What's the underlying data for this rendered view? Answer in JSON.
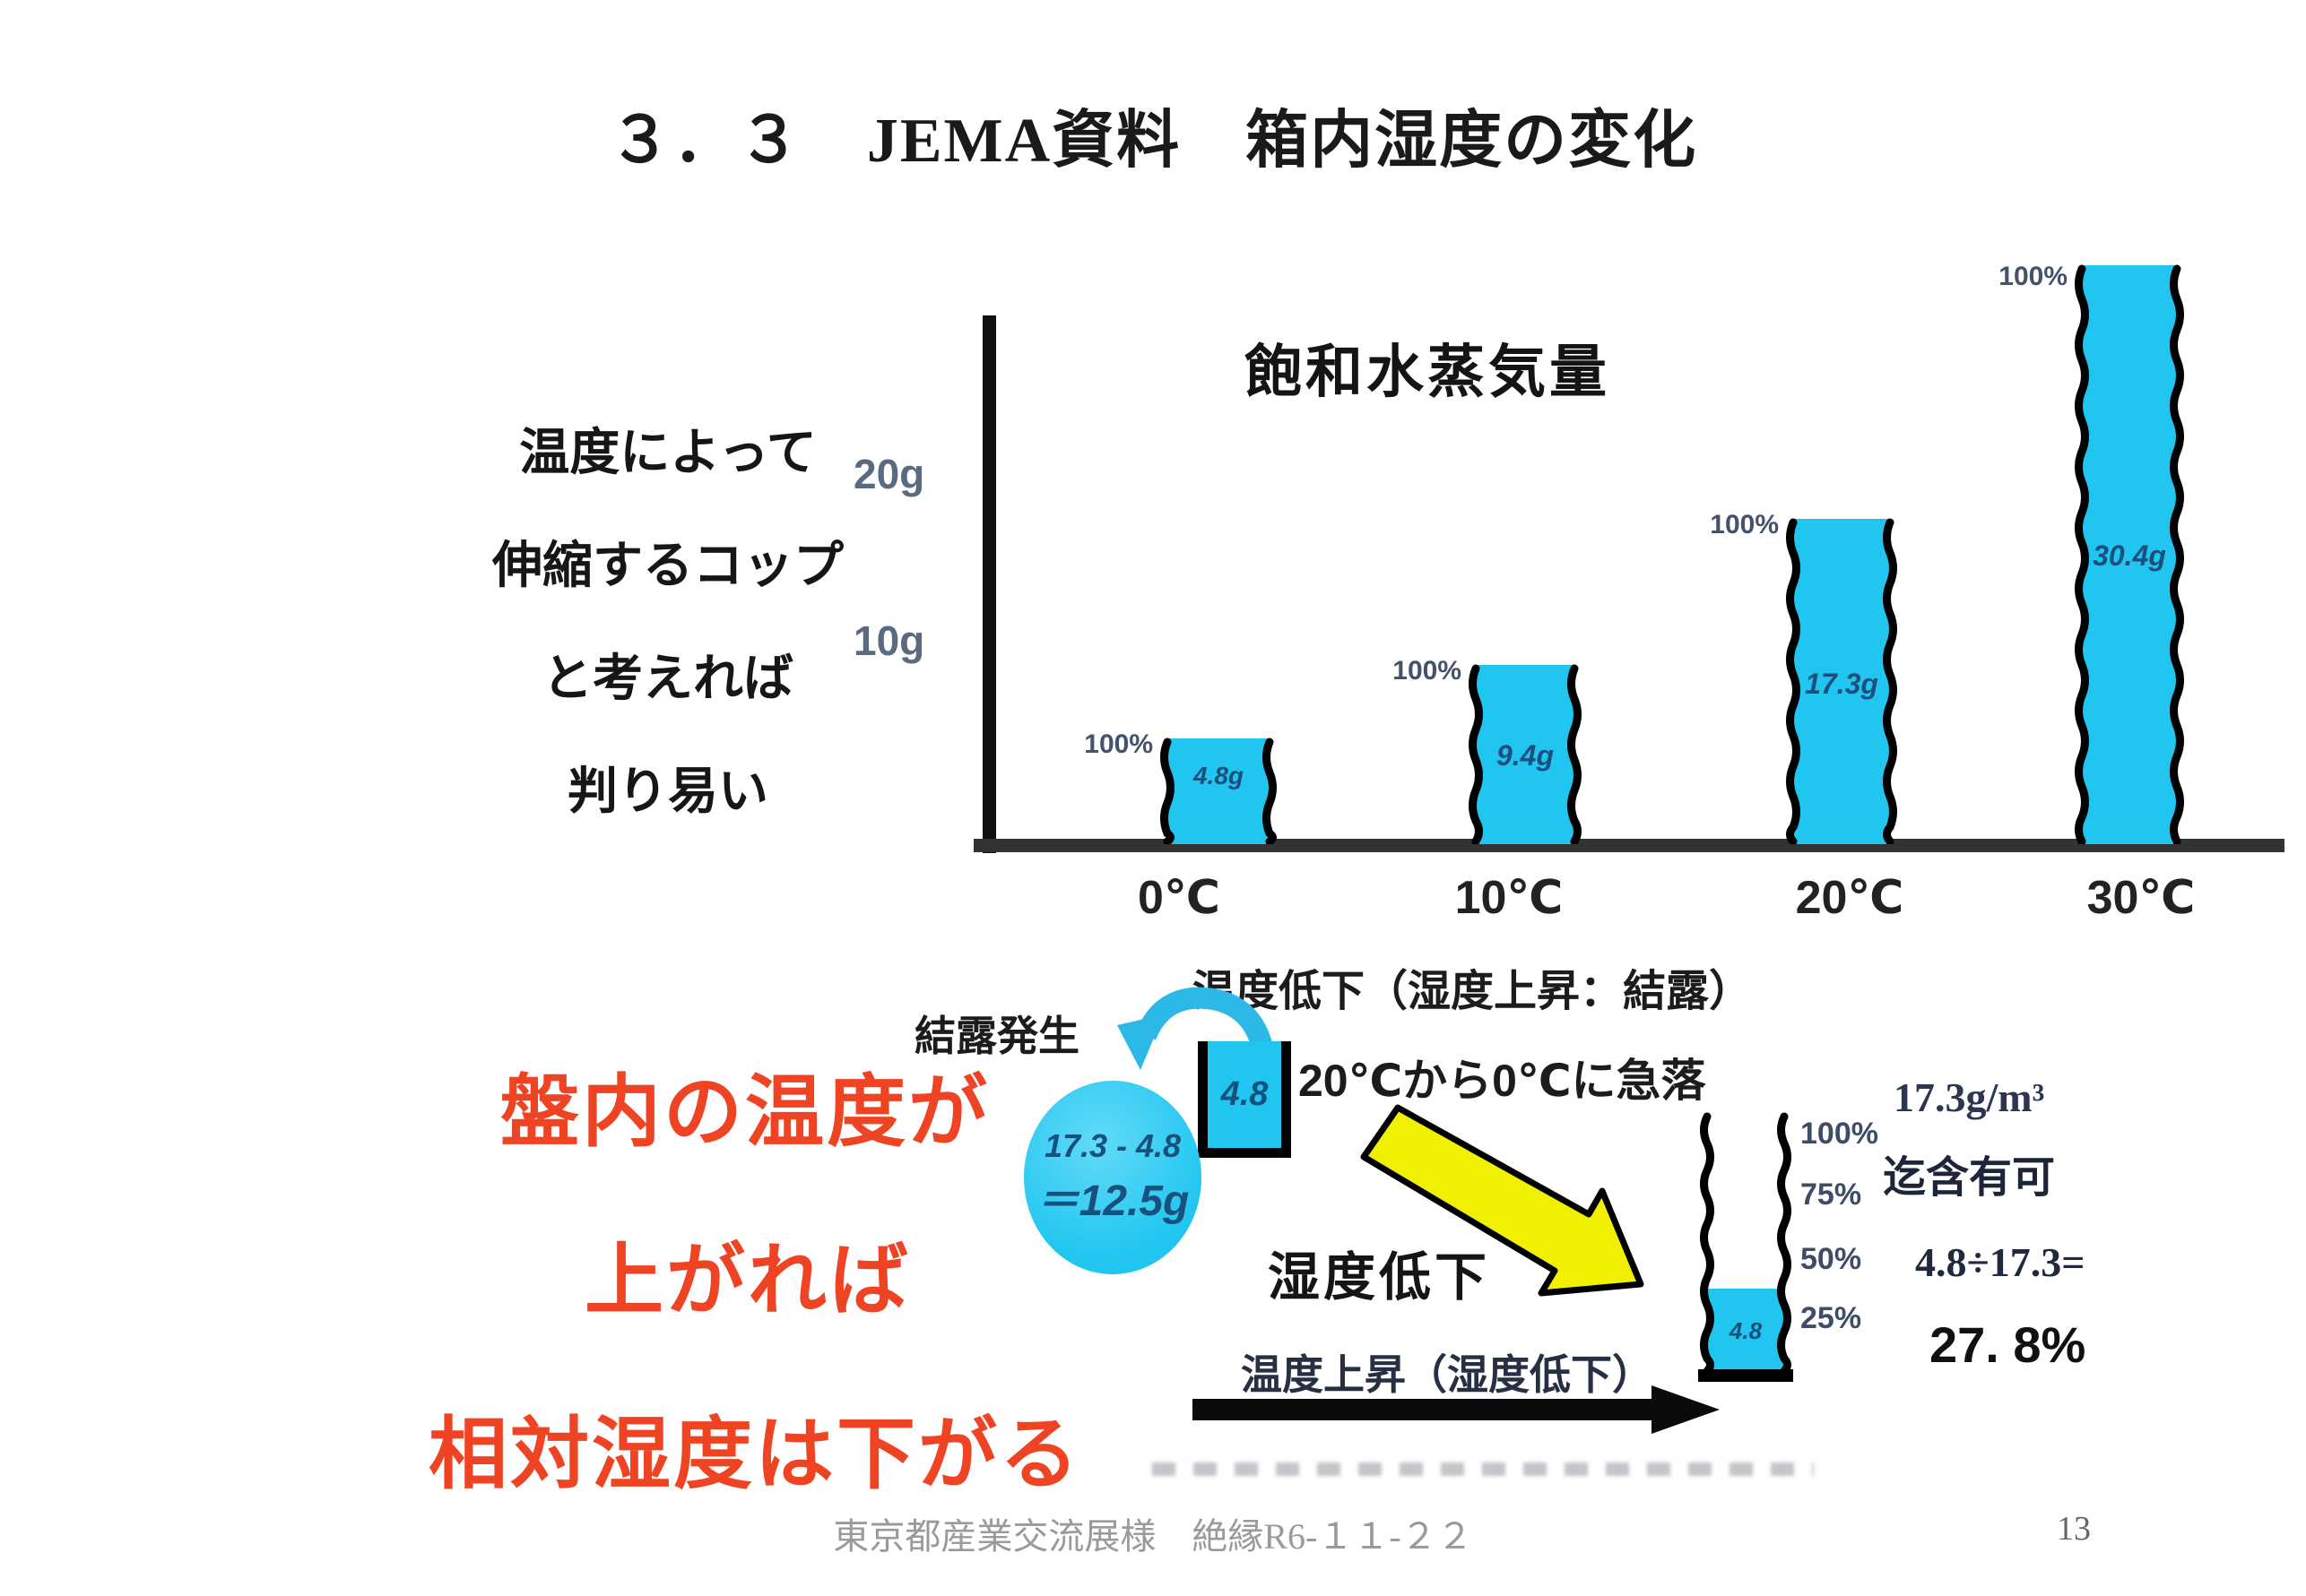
{
  "slide": {
    "title": "３．３　JEMA資料　箱内湿度の変化",
    "footer": "東京都産業交流展様　絶縁R6-１１-２２",
    "page_number": "13"
  },
  "left_note": {
    "line1": "温度によって",
    "line2": "伸縮するコップ",
    "line3": "と考えれば",
    "line4": "判り易い"
  },
  "chart_data": {
    "type": "bar",
    "title": "飽和水蒸気量",
    "categories": [
      "0℃",
      "10℃",
      "20℃",
      "30℃"
    ],
    "values": [
      4.8,
      9.4,
      17.3,
      30.4
    ],
    "unit": "g",
    "bar_value_labels": [
      "4.8g",
      "9.4g",
      "17.3g",
      "30.4g"
    ],
    "bar_top_labels": [
      "100%",
      "100%",
      "100%",
      "100%"
    ],
    "y_ticks": [
      "20g",
      "10g"
    ],
    "ylim": [
      0,
      33
    ],
    "grid": false,
    "legend": false,
    "bar_style": "cup-with-wavy-walls",
    "bar_color": "#20c6f0"
  },
  "condensation": {
    "cooling_note": "温度低下（湿度上昇：結露）",
    "label": "結露発生",
    "cup_value": "4.8",
    "plunge_note": "20℃から0℃に急落",
    "circle_line1": "17.3 - 4.8",
    "circle_line2": "＝12.5g"
  },
  "humidity_drop": {
    "label": "湿度低下",
    "warming_note": "温度上昇（湿度低下）",
    "scale_labels": [
      "100%",
      "75%",
      "50%",
      "25%"
    ],
    "cup_value": "4.8",
    "capacity": "17.3g/m³",
    "capacity_note": "迄含有可",
    "formula": "4.8÷17.3=",
    "result": "27. 8%"
  },
  "red_message": {
    "line1": "盤内の温度が",
    "line2": "上がれば",
    "line3": "相対湿度は下がる"
  },
  "colors": {
    "bar_cyan": "#20c6f0",
    "red_text": "#ee4423",
    "yellow_arrow": "#f0f000",
    "axis_black": "#1a1a1a"
  }
}
